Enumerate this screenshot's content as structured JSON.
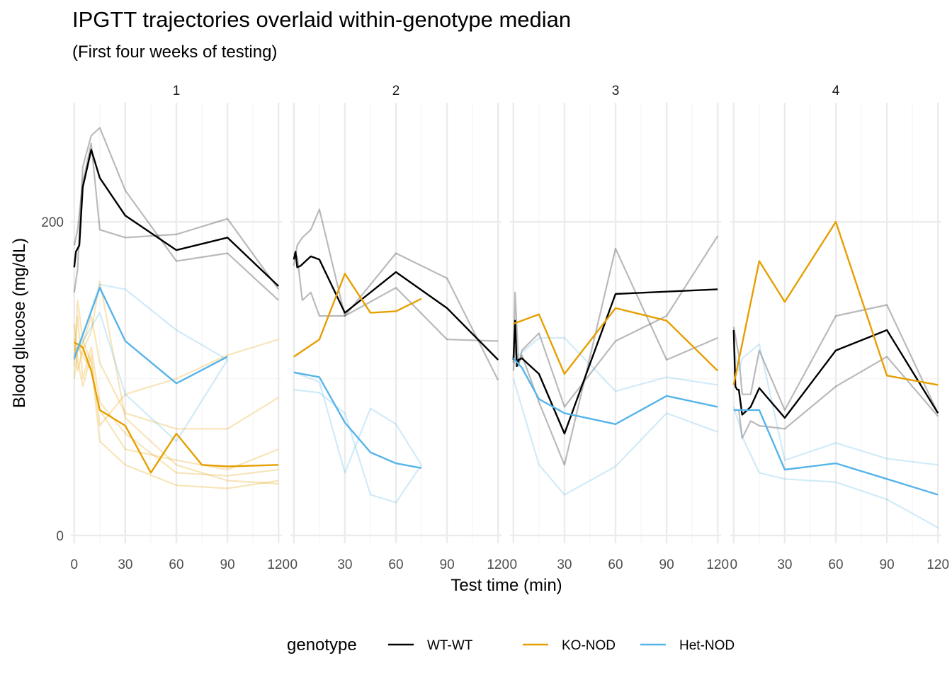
{
  "header": {
    "title": "IPGTT trajectories overlaid within-genotype median",
    "subtitle": "(First four weeks of testing)"
  },
  "colors": {
    "WT-WT": "#000000",
    "KO-NOD": "#E69F00",
    "Het-NOD": "#56B4E9",
    "gridMajor": "#EBEBEB",
    "gridMinor": "#F5F5F5"
  },
  "legend": {
    "title": "genotype",
    "position": "bottom",
    "items": [
      "WT-WT",
      "KO-NOD",
      "Het-NOD"
    ]
  },
  "chart_data": {
    "type": "line",
    "xlabel": "Test time (min)",
    "ylabel": "Blood glucose (mg/dL)",
    "xlim": [
      -2,
      122
    ],
    "ylim": [
      -5,
      276
    ],
    "x_ticks": [
      0,
      30,
      60,
      90,
      120
    ],
    "x_minor": [
      15,
      45,
      75,
      105
    ],
    "y_ticks": [
      0,
      200
    ],
    "y_minor": [
      100
    ],
    "grid": true,
    "facets": [
      {
        "label": "1",
        "individual": [
          {
            "genotype": "WT-WT",
            "x": [
              0,
              2,
              5,
              10,
              15,
              30,
              60,
              90,
              120
            ],
            "y": [
              155,
              170,
              235,
              255,
              260,
              220,
              175,
              180,
              150
            ]
          },
          {
            "genotype": "WT-WT",
            "x": [
              0,
              2,
              5,
              10,
              15,
              30,
              60,
              90,
              120
            ],
            "y": [
              185,
              195,
              225,
              250,
              195,
              190,
              192,
              202,
              157
            ]
          },
          {
            "genotype": "KO-NOD",
            "x": [
              0,
              2,
              5,
              10,
              15,
              30,
              60,
              90,
              120
            ],
            "y": [
              108,
              150,
              125,
              110,
              60,
              45,
              32,
              30,
              35
            ]
          },
          {
            "genotype": "KO-NOD",
            "x": [
              0,
              2,
              5,
              10,
              15,
              30,
              60,
              90,
              120
            ],
            "y": [
              112,
              140,
              100,
              120,
              85,
              65,
              40,
              38,
              42
            ]
          },
          {
            "genotype": "KO-NOD",
            "x": [
              0,
              2,
              5,
              10,
              15,
              30,
              60,
              90,
              120
            ],
            "y": [
              125,
              105,
              118,
              130,
              162,
              75,
              45,
              35,
              33
            ]
          },
          {
            "genotype": "KO-NOD",
            "x": [
              0,
              2,
              5,
              10,
              15,
              30,
              60,
              90,
              120
            ],
            "y": [
              118,
              120,
              115,
              105,
              80,
              55,
              48,
              42,
              55
            ]
          },
          {
            "genotype": "KO-NOD",
            "x": [
              0,
              2,
              5,
              10,
              15,
              30,
              60,
              90,
              120
            ],
            "y": [
              135,
              112,
              95,
              115,
              70,
              90,
              100,
              115,
              125
            ]
          },
          {
            "genotype": "KO-NOD",
            "x": [
              0,
              2,
              5,
              10,
              15,
              30,
              60,
              90,
              120
            ],
            "y": [
              100,
              118,
              122,
              140,
              110,
              78,
              68,
              68,
              88
            ]
          },
          {
            "genotype": "Het-NOD",
            "x": [
              0,
              15,
              30,
              60,
              90
            ],
            "y": [
              112,
              160,
              157,
              131,
              112
            ]
          },
          {
            "genotype": "Het-NOD",
            "x": [
              0,
              15,
              30,
              60,
              90
            ],
            "y": [
              115,
              142,
              90,
              60,
              112
            ]
          }
        ],
        "median": [
          {
            "genotype": "WT-WT",
            "x": [
              0,
              1,
              3,
              5,
              10,
              15,
              30,
              60,
              90,
              120
            ],
            "y": [
              171,
              181,
              185,
              222,
              246,
              228,
              204,
              182,
              190,
              159
            ]
          },
          {
            "genotype": "KO-NOD",
            "x": [
              0,
              2,
              5,
              10,
              15,
              30,
              45,
              60,
              75,
              90,
              120
            ],
            "y": [
              123,
              122,
              120,
              105,
              80,
              70,
              40,
              65,
              45,
              44,
              45
            ]
          },
          {
            "genotype": "Het-NOD",
            "x": [
              0,
              15,
              30,
              60,
              90
            ],
            "y": [
              113,
              158,
              124,
              97,
              114
            ]
          }
        ]
      },
      {
        "label": "2",
        "individual": [
          {
            "genotype": "WT-WT",
            "x": [
              0,
              2,
              5,
              10,
              15,
              30,
              60,
              90,
              120
            ],
            "y": [
              180,
              178,
              150,
              155,
              140,
              140,
              180,
              164,
              99
            ]
          },
          {
            "genotype": "WT-WT",
            "x": [
              0,
              2,
              5,
              10,
              15,
              30,
              60,
              90,
              120
            ],
            "y": [
              172,
              185,
              190,
              195,
              208,
              140,
              158,
              125,
              124
            ]
          },
          {
            "genotype": "Het-NOD",
            "x": [
              0,
              15,
              30,
              45,
              60,
              75
            ],
            "y": [
              93,
              91,
              78,
              26,
              21,
              45
            ]
          },
          {
            "genotype": "Het-NOD",
            "x": [
              0,
              15,
              30,
              45,
              60,
              75
            ],
            "y": [
              104,
              98,
              40,
              81,
              71,
              45
            ]
          }
        ],
        "median": [
          {
            "genotype": "WT-WT",
            "x": [
              0,
              1,
              2,
              4,
              10,
              15,
              30,
              60,
              90,
              120
            ],
            "y": [
              176,
              181,
              171,
              172,
              178,
              176,
              142,
              168,
              145,
              112
            ]
          },
          {
            "genotype": "KO-NOD",
            "x": [
              0,
              15,
              30,
              45,
              60,
              75
            ],
            "y": [
              114,
              125,
              167,
              142,
              143,
              151
            ]
          },
          {
            "genotype": "Het-NOD",
            "x": [
              0,
              15,
              30,
              45,
              60,
              75
            ],
            "y": [
              104,
              101,
              72,
              53,
              46,
              43
            ]
          }
        ]
      },
      {
        "label": "3",
        "individual": [
          {
            "genotype": "WT-WT",
            "x": [
              0,
              1,
              3,
              5,
              15,
              30,
              60,
              90,
              120
            ],
            "y": [
              110,
              155,
              110,
              115,
              85,
              45,
              183,
              112,
              126
            ]
          },
          {
            "genotype": "WT-WT",
            "x": [
              0,
              1,
              3,
              5,
              15,
              30,
              60,
              90,
              120
            ],
            "y": [
              105,
              120,
              108,
              118,
              129,
              82,
              124,
              140,
              191
            ]
          },
          {
            "genotype": "Het-NOD",
            "x": [
              0,
              15,
              30,
              60,
              90,
              120
            ],
            "y": [
              100,
              45,
              26,
              44,
              78,
              66
            ]
          },
          {
            "genotype": "Het-NOD",
            "x": [
              0,
              15,
              30,
              60,
              90,
              120
            ],
            "y": [
              112,
              126,
              126,
              92,
              101,
              96
            ]
          }
        ],
        "median": [
          {
            "genotype": "WT-WT",
            "x": [
              0,
              1,
              2,
              3,
              5,
              10,
              15,
              30,
              60,
              120
            ],
            "y": [
              112,
              137,
              108,
              112,
              113,
              108,
              103,
              65,
              154,
              157
            ],
            "note": ""
          },
          {
            "genotype": "KO-NOD",
            "x": [
              0,
              15,
              30,
              60,
              90,
              120
            ],
            "y": [
              135,
              141,
              103,
              145,
              137,
              105
            ]
          },
          {
            "genotype": "Het-NOD",
            "x": [
              0,
              5,
              15,
              30,
              60,
              90,
              120
            ],
            "y": [
              113,
              107,
              87,
              78,
              71,
              89,
              82
            ]
          }
        ]
      },
      {
        "label": "4",
        "individual": [
          {
            "genotype": "WT-WT",
            "x": [
              0,
              3,
              5,
              10,
              15,
              30,
              60,
              90,
              120
            ],
            "y": [
              133,
              115,
              90,
              90,
              118,
              80,
              140,
              147,
              78
            ]
          },
          {
            "genotype": "WT-WT",
            "x": [
              0,
              3,
              5,
              10,
              15,
              30,
              60,
              90,
              120
            ],
            "y": [
              80,
              80,
              62,
              73,
              70,
              68,
              95,
              114,
              76
            ]
          },
          {
            "genotype": "Het-NOD",
            "x": [
              0,
              3,
              5,
              15,
              30,
              60,
              90,
              120
            ],
            "y": [
              120,
              105,
              113,
              122,
              48,
              59,
              49,
              45
            ]
          },
          {
            "genotype": "Het-NOD",
            "x": [
              0,
              3,
              5,
              15,
              30,
              60,
              90,
              120
            ],
            "y": [
              82,
              72,
              63,
              40,
              36,
              34,
              23,
              5
            ]
          }
        ],
        "median": [
          {
            "genotype": "WT-WT",
            "x": [
              0,
              1,
              2,
              3,
              5,
              10,
              15,
              30,
              60,
              90,
              120
            ],
            "y": [
              131,
              95,
              93,
              93,
              77,
              82,
              94,
              75,
              118,
              131,
              78
            ]
          },
          {
            "genotype": "KO-NOD",
            "x": [
              0,
              15,
              30,
              60,
              90,
              120
            ],
            "y": [
              96,
              175,
              149,
              200,
              102,
              96
            ]
          },
          {
            "genotype": "Het-NOD",
            "x": [
              0,
              15,
              30,
              60,
              90,
              120
            ],
            "y": [
              80,
              80,
              42,
              46,
              36,
              26
            ]
          }
        ]
      }
    ]
  }
}
